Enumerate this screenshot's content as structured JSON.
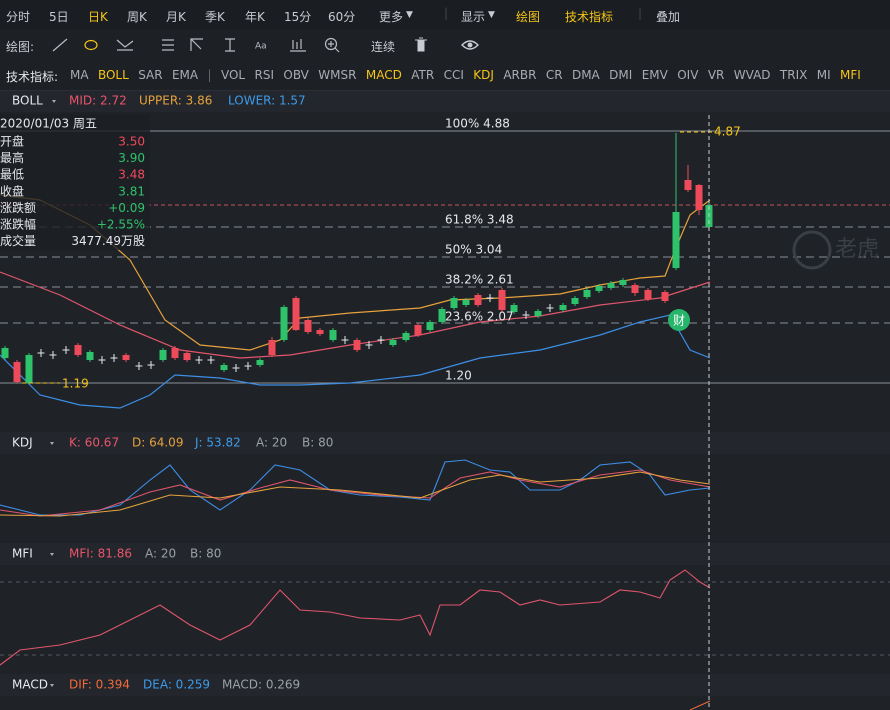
{
  "toolbar": {
    "periods": [
      "分时",
      "5日",
      "日K",
      "周K",
      "月K",
      "季K",
      "年K",
      "15分",
      "60分",
      "更多"
    ],
    "options": [
      "显示",
      "绘图",
      "技术指标",
      "叠加"
    ]
  },
  "draw_bar": {
    "label": "绘图:",
    "continuous": "连续"
  },
  "indicator_bar": {
    "label": "技术指标:",
    "items": [
      "MA",
      "BOLL",
      "SAR",
      "EMA",
      "VOL",
      "RSI",
      "OBV",
      "WMSR",
      "MACD",
      "ATR",
      "CCI",
      "KDJ",
      "ARBR",
      "CR",
      "DMA",
      "DMI",
      "EMV",
      "OIV",
      "VR",
      "WVAD",
      "TRIX",
      "MI",
      "MFI"
    ]
  },
  "boll": {
    "name": "BOLL",
    "mid": "MID: 2.72",
    "upper": "UPPER: 3.86",
    "lower": "LOWER: 1.57"
  },
  "info": {
    "date": "2020/01/03 周五",
    "rows": [
      [
        "开盘",
        "3.50"
      ],
      [
        "最高",
        "3.90"
      ],
      [
        "最低",
        "3.48"
      ],
      [
        "收盘",
        "3.81"
      ],
      [
        "涨跌额",
        "+0.09"
      ],
      [
        "涨跌幅",
        "+2.55%"
      ],
      [
        "成交量",
        "3477.49万股"
      ]
    ]
  },
  "fib": [
    "100% 4.88",
    "61.8% 3.48",
    "50% 3.04",
    "38.2% 2.61",
    "23.6% 2.07",
    "1.20"
  ],
  "high_label": "4.87",
  "low_label": "1.19",
  "badge": "财",
  "kdj": {
    "name": "KDJ",
    "k": "K: 60.67",
    "d": "D: 64.09",
    "j": "J: 53.82",
    "a": "A: 20",
    "b": "B: 80"
  },
  "mfi": {
    "name": "MFI",
    "mfi": "MFI: 81.86",
    "a": "A: 20",
    "b": "B: 80"
  },
  "macd": {
    "name": "MACD",
    "dif": "DIF: 0.394",
    "dea": "DEA: 0.259",
    "macd": "MACD: 0.269"
  }
}
